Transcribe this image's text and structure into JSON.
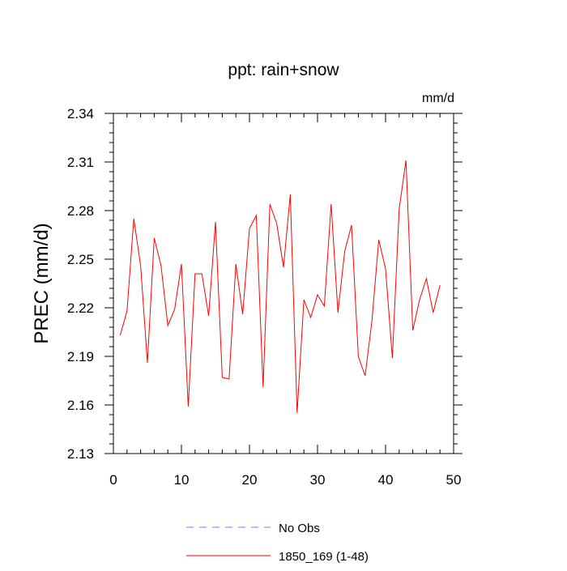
{
  "chart_data": {
    "type": "line",
    "title": "ppt: rain+snow",
    "units_label": "mm/d",
    "ylabel": "PREC  (mm/d)",
    "xlabel": "",
    "xlim": [
      0,
      50
    ],
    "ylim": [
      2.13,
      2.34
    ],
    "x_ticks": [
      0,
      10,
      20,
      30,
      40,
      50
    ],
    "y_ticks": [
      2.13,
      2.16,
      2.19,
      2.22,
      2.25,
      2.28,
      2.31,
      2.34
    ],
    "y_tick_labels": [
      "2.13",
      "2.16",
      "2.19",
      "2.22",
      "2.25",
      "2.28",
      "2.31",
      "2.34"
    ],
    "grid": false,
    "legend_position": "bottom-center",
    "series": [
      {
        "name": "1850_169 (1-48)",
        "color": "#ff0000",
        "dash": "solid",
        "x": [
          1,
          2,
          3,
          4,
          5,
          6,
          7,
          8,
          9,
          10,
          11,
          12,
          13,
          14,
          15,
          16,
          17,
          18,
          19,
          20,
          21,
          22,
          23,
          24,
          25,
          26,
          27,
          28,
          29,
          30,
          31,
          32,
          33,
          34,
          35,
          36,
          37,
          38,
          39,
          40,
          41,
          42,
          43,
          44,
          45,
          46,
          47,
          48
        ],
        "values": [
          2.203,
          2.218,
          2.275,
          2.246,
          2.186,
          2.263,
          2.246,
          2.209,
          2.219,
          2.247,
          2.159,
          2.241,
          2.241,
          2.215,
          2.273,
          2.177,
          2.176,
          2.247,
          2.216,
          2.269,
          2.277,
          2.171,
          2.284,
          2.272,
          2.245,
          2.29,
          2.155,
          2.225,
          2.214,
          2.228,
          2.221,
          2.284,
          2.217,
          2.255,
          2.271,
          2.19,
          2.178,
          2.212,
          2.262,
          2.244,
          2.189,
          2.281,
          2.311,
          2.206,
          2.225,
          2.238,
          2.217,
          2.234
        ]
      }
    ],
    "legend": [
      {
        "label": "No Obs",
        "color": "#7a7aff",
        "dash": "dashed"
      },
      {
        "label": "1850_169 (1-48)",
        "color": "#ff0000",
        "dash": "solid"
      }
    ]
  }
}
